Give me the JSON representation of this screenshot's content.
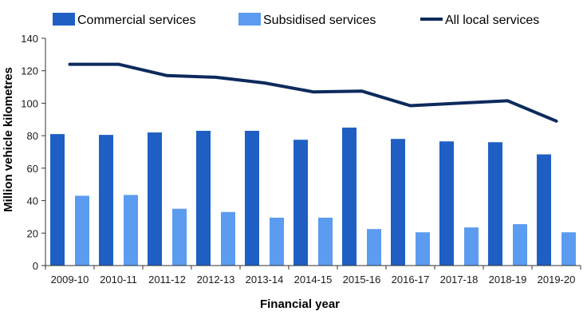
{
  "chart_data": {
    "type": "bar",
    "title": "",
    "xlabel": "Financial year",
    "ylabel": "Million vehicle kilometres",
    "ylim": [
      0,
      140
    ],
    "yticks": [
      0,
      20,
      40,
      60,
      80,
      100,
      120,
      140
    ],
    "grid": false,
    "legend_position": "top",
    "categories": [
      "2009-10",
      "2010-11",
      "2011-12",
      "2012-13",
      "2013-14",
      "2014-15",
      "2015-16",
      "2016-17",
      "2017-18",
      "2018-19",
      "2019-20"
    ],
    "series": [
      {
        "name": "Commercial services",
        "kind": "bar",
        "color": "#1f5fc4",
        "values": [
          81,
          80.5,
          82,
          83,
          83,
          77.5,
          85,
          78,
          76.5,
          76,
          68.5
        ]
      },
      {
        "name": "Subsidised services",
        "kind": "bar",
        "color": "#5b9cf0",
        "values": [
          43,
          43.5,
          35,
          33,
          29.5,
          29.5,
          22.5,
          20.5,
          23.5,
          25.5,
          20.5
        ]
      },
      {
        "name": "All local services",
        "kind": "line",
        "color": "#0d2a5c",
        "values": [
          124,
          124,
          117,
          116,
          112.5,
          107,
          107.5,
          98.5,
          100,
          101.5,
          89
        ]
      }
    ]
  }
}
